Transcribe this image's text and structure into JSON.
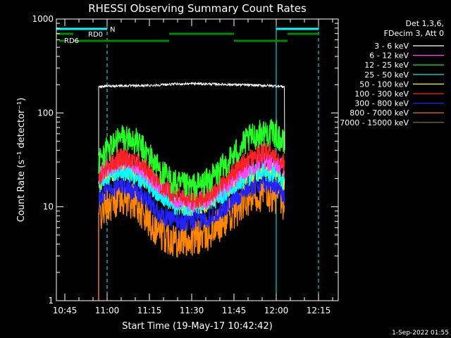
{
  "chart_data": {
    "type": "line",
    "title": "RHESSI Observing Summary Count Rates",
    "xlabel": "Start Time (19-May-17 10:42:42)",
    "ylabel": "Count Rate (s⁻¹ detector⁻¹)",
    "y_scale": "log",
    "ylim": [
      1,
      1000
    ],
    "xlim": [
      "10:42",
      "12:22"
    ],
    "x_ticks": [
      "10:45",
      "11:00",
      "11:15",
      "11:30",
      "11:45",
      "12:00",
      "12:15"
    ],
    "y_ticks": [
      "1",
      "10",
      "100",
      "1000"
    ],
    "legend": {
      "placement": "right",
      "header": [
        "Det 1,3,6,",
        "FDecim 3, Att 0"
      ]
    },
    "series": [
      {
        "name": "3 - 6 keV",
        "color": "#ffffff",
        "x": [
          "10:57",
          "11:00",
          "11:05",
          "11:10",
          "11:15",
          "11:20",
          "11:25",
          "11:30",
          "11:35",
          "11:40",
          "11:45",
          "11:50",
          "11:55",
          "12:00",
          "12:03"
        ],
        "y": [
          190,
          193,
          195,
          194,
          196,
          200,
          203,
          205,
          204,
          202,
          200,
          198,
          196,
          194,
          190
        ]
      },
      {
        "name": "6 - 12 keV",
        "color": "#ff44ff",
        "x": [
          "10:57",
          "11:00",
          "11:05",
          "11:10",
          "11:15",
          "11:20",
          "11:25",
          "11:30",
          "11:35",
          "11:40",
          "11:45",
          "11:50",
          "11:55",
          "12:00",
          "12:03"
        ],
        "y": [
          22,
          26,
          32,
          28,
          21,
          15,
          12,
          11,
          12,
          15,
          20,
          26,
          31,
          30,
          24
        ]
      },
      {
        "name": "12 - 25 keV",
        "color": "#22ff22",
        "x": [
          "10:57",
          "11:00",
          "11:05",
          "11:10",
          "11:15",
          "11:20",
          "11:25",
          "11:30",
          "11:35",
          "11:40",
          "11:45",
          "11:50",
          "11:55",
          "12:00",
          "12:03"
        ],
        "y": [
          30,
          40,
          55,
          50,
          35,
          22,
          17,
          16,
          18,
          24,
          36,
          52,
          62,
          60,
          45
        ]
      },
      {
        "name": "25 - 50 keV",
        "color": "#00ffff",
        "x": [
          "10:57",
          "11:00",
          "11:05",
          "11:10",
          "11:15",
          "11:20",
          "11:25",
          "11:30",
          "11:35",
          "11:40",
          "11:45",
          "11:50",
          "11:55",
          "12:00",
          "12:03"
        ],
        "y": [
          17,
          21,
          24,
          22,
          17,
          13,
          10,
          10,
          11,
          13,
          17,
          21,
          24,
          23,
          18
        ]
      },
      {
        "name": "50 - 100 keV",
        "color": "#ffff00",
        "x": [
          "10:57",
          "11:00",
          "11:05",
          "11:10",
          "11:15",
          "11:20",
          "11:25",
          "11:30",
          "11:35",
          "11:40",
          "11:45",
          "11:50",
          "11:55",
          "12:00",
          "12:03"
        ],
        "y": [
          18,
          22,
          26,
          24,
          19,
          14,
          11,
          10,
          11,
          14,
          18,
          22,
          25,
          24,
          19
        ]
      },
      {
        "name": "100 - 300 keV",
        "color": "#ff2222",
        "x": [
          "10:57",
          "11:00",
          "11:05",
          "11:10",
          "11:15",
          "11:20",
          "11:25",
          "11:30",
          "11:35",
          "11:40",
          "11:45",
          "11:50",
          "11:55",
          "12:00",
          "12:03"
        ],
        "y": [
          21,
          27,
          34,
          32,
          24,
          16,
          13,
          12,
          13,
          17,
          24,
          32,
          38,
          37,
          28
        ]
      },
      {
        "name": "300 - 800 keV",
        "color": "#2222ff",
        "x": [
          "10:57",
          "11:00",
          "11:05",
          "11:10",
          "11:15",
          "11:20",
          "11:25",
          "11:30",
          "11:35",
          "11:40",
          "11:45",
          "11:50",
          "11:55",
          "12:00",
          "12:03"
        ],
        "y": [
          12,
          15,
          17,
          15,
          11,
          8,
          7,
          7,
          7.5,
          9,
          12,
          16,
          18,
          17,
          13
        ]
      },
      {
        "name": "800 - 7000 keV",
        "color": "#ff8800",
        "x": [
          "10:57",
          "11:00",
          "11:05",
          "11:10",
          "11:15",
          "11:20",
          "11:25",
          "11:30",
          "11:35",
          "11:40",
          "11:45",
          "11:50",
          "11:55",
          "12:00",
          "12:03"
        ],
        "y": [
          8,
          10.5,
          13,
          11,
          7,
          5,
          4.5,
          4.5,
          5,
          6.5,
          9,
          12,
          14,
          13,
          10
        ]
      },
      {
        "name": "7000 - 15000 keV",
        "color": "#888800",
        "x": [],
        "y": []
      }
    ],
    "annotations": [
      {
        "text": "N",
        "color": "#00ffff"
      },
      {
        "text": "RD0",
        "color": "#00aa00"
      },
      {
        "text": "RD6",
        "color": "#00aa00"
      }
    ],
    "flags": {
      "night": {
        "color": "#00ffff",
        "intervals": [
          [
            "10:42",
            "11:00"
          ],
          [
            "12:00",
            "12:15"
          ]
        ]
      },
      "rd0": {
        "color": "#008800",
        "intervals": [
          [
            "10:42",
            "10:48"
          ],
          [
            "11:22",
            "11:45"
          ],
          [
            "12:04",
            "12:15"
          ]
        ]
      },
      "rd6": {
        "color": "#008800",
        "intervals": [
          [
            "10:43",
            "10:45"
          ],
          [
            "10:48",
            "11:22"
          ],
          [
            "11:45",
            "12:04"
          ]
        ]
      }
    },
    "vertical_markers": {
      "color": "#00ffff",
      "solid": [
        "10:42",
        "12:00"
      ],
      "dashed": [
        "11:00",
        "12:15"
      ]
    },
    "grid": false
  },
  "timestamp": "1-Sep-2022 01:55"
}
